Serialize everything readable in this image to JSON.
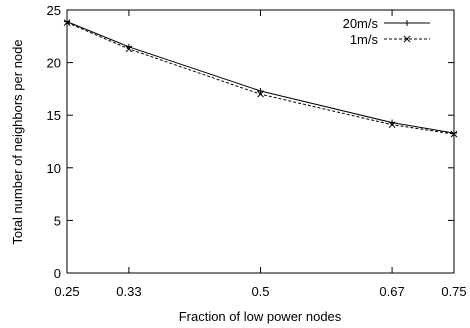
{
  "chart_data": {
    "type": "line",
    "title": "",
    "xlabel": "Fraction of low power nodes",
    "ylabel": "Total number of neighbors per node",
    "xlim": [
      0.25,
      0.75
    ],
    "ylim": [
      0,
      25
    ],
    "xticks": [
      0.25,
      0.33,
      0.5,
      0.67,
      0.75
    ],
    "xtick_labels": [
      "0.25",
      "0.33",
      "0.5",
      "0.67",
      "0.75"
    ],
    "yticks": [
      0,
      5,
      10,
      15,
      20,
      25
    ],
    "ytick_labels": [
      "0",
      "5",
      "10",
      "15",
      "20",
      "25"
    ],
    "grid": false,
    "legend_position": "top-right",
    "x": [
      0.25,
      0.33,
      0.5,
      0.67,
      0.75
    ],
    "series": [
      {
        "name": "20m/s",
        "values": [
          23.9,
          21.5,
          17.3,
          14.3,
          13.3
        ],
        "style": "solid",
        "marker": "plus",
        "color": "#000000"
      },
      {
        "name": "1m/s",
        "values": [
          23.8,
          21.3,
          17.0,
          14.1,
          13.2
        ],
        "style": "dashed",
        "marker": "cross",
        "color": "#000000"
      }
    ]
  }
}
